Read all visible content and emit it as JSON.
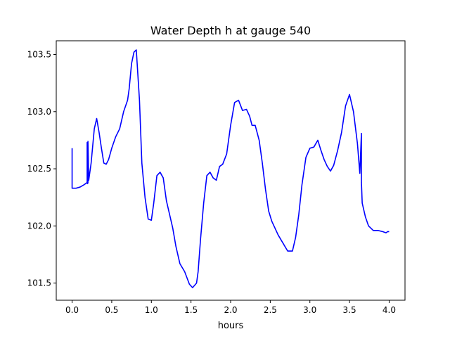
{
  "chart_data": {
    "type": "line",
    "title": "Water Depth h at gauge 540",
    "xlabel": "hours",
    "ylabel": "",
    "xlim": [
      -0.2,
      4.2
    ],
    "ylim": [
      101.35,
      103.62
    ],
    "grid": false,
    "x_ticks": [
      0.0,
      0.5,
      1.0,
      1.5,
      2.0,
      2.5,
      3.0,
      3.5,
      4.0
    ],
    "x_tick_labels": [
      "0.0",
      "0.5",
      "1.0",
      "1.5",
      "2.0",
      "2.5",
      "3.0",
      "3.5",
      "4.0"
    ],
    "y_ticks": [
      101.5,
      102.0,
      102.5,
      103.0,
      103.5
    ],
    "y_tick_labels": [
      "101.5",
      "102.0",
      "102.5",
      "103.0",
      "103.5"
    ],
    "series": [
      {
        "color": "#0000ff",
        "x": [
          0.0,
          0.0,
          0.003,
          0.05,
          0.1,
          0.15,
          0.19,
          0.19,
          0.195,
          0.2,
          0.2,
          0.21,
          0.24,
          0.28,
          0.31,
          0.34,
          0.37,
          0.4,
          0.43,
          0.46,
          0.5,
          0.55,
          0.6,
          0.65,
          0.7,
          0.72,
          0.75,
          0.78,
          0.81,
          0.85,
          0.88,
          0.92,
          0.96,
          1.0,
          1.03,
          1.07,
          1.11,
          1.15,
          1.19,
          1.23,
          1.27,
          1.31,
          1.36,
          1.42,
          1.48,
          1.52,
          1.57,
          1.59,
          1.62,
          1.66,
          1.7,
          1.74,
          1.78,
          1.82,
          1.86,
          1.9,
          1.95,
          2.0,
          2.05,
          2.1,
          2.15,
          2.2,
          2.24,
          2.27,
          2.31,
          2.36,
          2.4,
          2.44,
          2.48,
          2.52,
          2.56,
          2.6,
          2.66,
          2.72,
          2.78,
          2.82,
          2.86,
          2.9,
          2.95,
          3.0,
          3.05,
          3.1,
          3.14,
          3.18,
          3.22,
          3.26,
          3.3,
          3.35,
          3.4,
          3.45,
          3.5,
          3.55,
          3.6,
          3.63,
          3.65,
          3.65,
          3.652,
          3.66,
          3.68,
          3.7,
          3.74,
          3.8,
          3.86,
          3.92,
          3.96,
          3.98,
          4.0
        ],
        "y": [
          102.68,
          102.33,
          102.33,
          102.33,
          102.34,
          102.36,
          102.38,
          102.73,
          102.37,
          102.38,
          102.74,
          102.4,
          102.55,
          102.85,
          102.94,
          102.82,
          102.68,
          102.55,
          102.54,
          102.58,
          102.68,
          102.78,
          102.85,
          103.0,
          103.1,
          103.2,
          103.42,
          103.52,
          103.54,
          103.1,
          102.55,
          102.25,
          102.06,
          102.05,
          102.2,
          102.44,
          102.47,
          102.42,
          102.22,
          102.1,
          101.98,
          101.82,
          101.67,
          101.6,
          101.49,
          101.46,
          101.5,
          101.6,
          101.88,
          102.2,
          102.44,
          102.47,
          102.42,
          102.4,
          102.52,
          102.54,
          102.63,
          102.88,
          103.08,
          103.1,
          103.01,
          103.02,
          102.96,
          102.88,
          102.88,
          102.75,
          102.55,
          102.32,
          102.13,
          102.04,
          101.98,
          101.92,
          101.85,
          101.78,
          101.78,
          101.9,
          102.1,
          102.36,
          102.6,
          102.68,
          102.69,
          102.75,
          102.66,
          102.58,
          102.52,
          102.48,
          102.53,
          102.66,
          102.82,
          103.05,
          103.15,
          103.0,
          102.72,
          102.46,
          102.81,
          102.38,
          102.35,
          102.2,
          102.14,
          102.08,
          102.0,
          101.96,
          101.96,
          101.95,
          101.94,
          101.95,
          101.95
        ]
      }
    ]
  }
}
